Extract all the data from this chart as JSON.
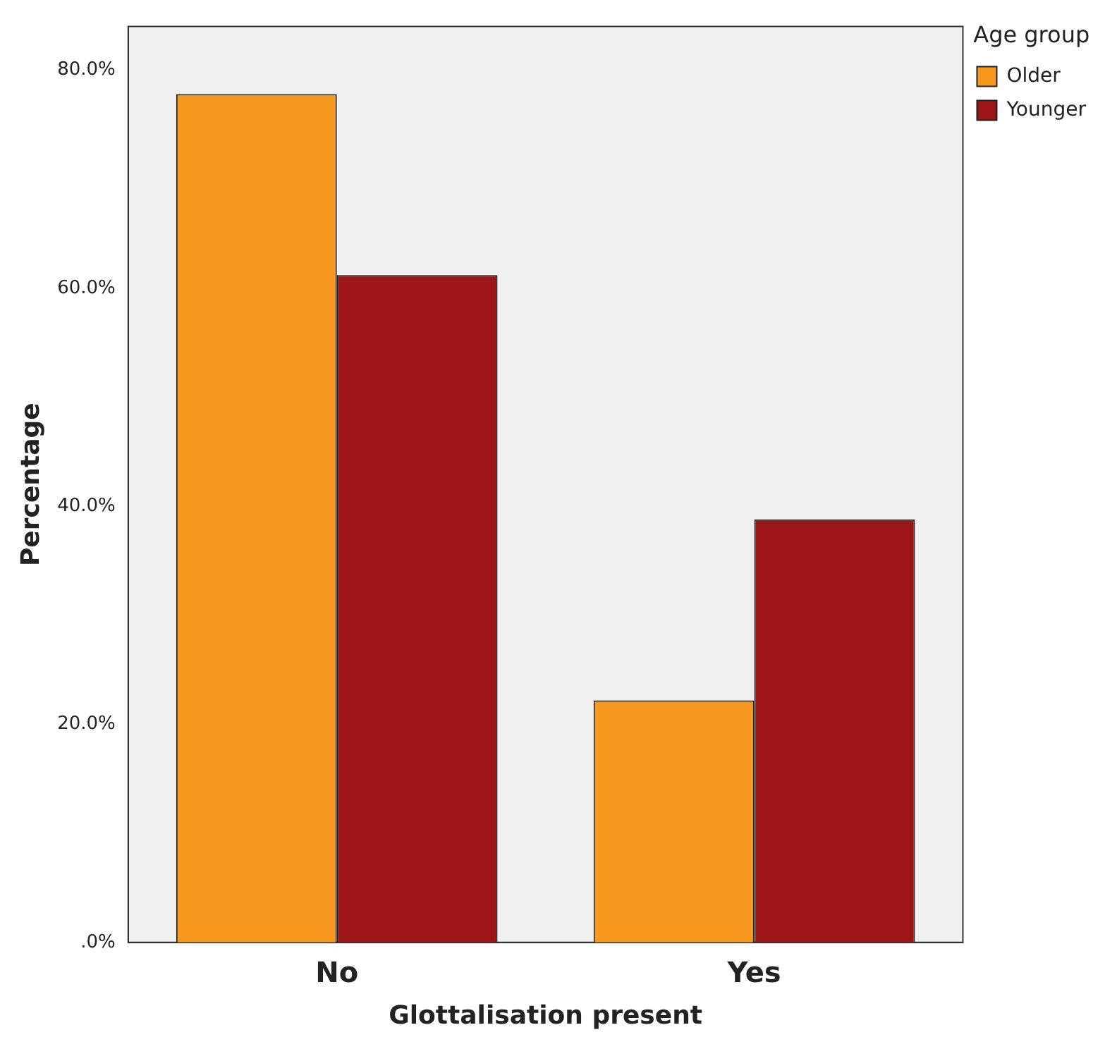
{
  "chart_data": {
    "type": "bar",
    "xlabel": "Glottalisation present",
    "ylabel": "Percentage",
    "legend_title": "Age group",
    "legend": "top right",
    "categories": [
      "No",
      "Yes"
    ],
    "series": [
      {
        "name": "Older",
        "color": "#f7991e",
        "values": [
          77.8,
          22.2
        ]
      },
      {
        "name": "Younger",
        "color": "#9c1618",
        "values": [
          61.2,
          38.8
        ]
      }
    ],
    "ylim": [
      0,
      84
    ],
    "yticks": [
      {
        "value": 0,
        "label": ".0%"
      },
      {
        "value": 20,
        "label": "20.0%"
      },
      {
        "value": 40,
        "label": "40.0%"
      },
      {
        "value": 60,
        "label": "60.0%"
      },
      {
        "value": 80,
        "label": "80.0%"
      }
    ],
    "grid": false
  }
}
